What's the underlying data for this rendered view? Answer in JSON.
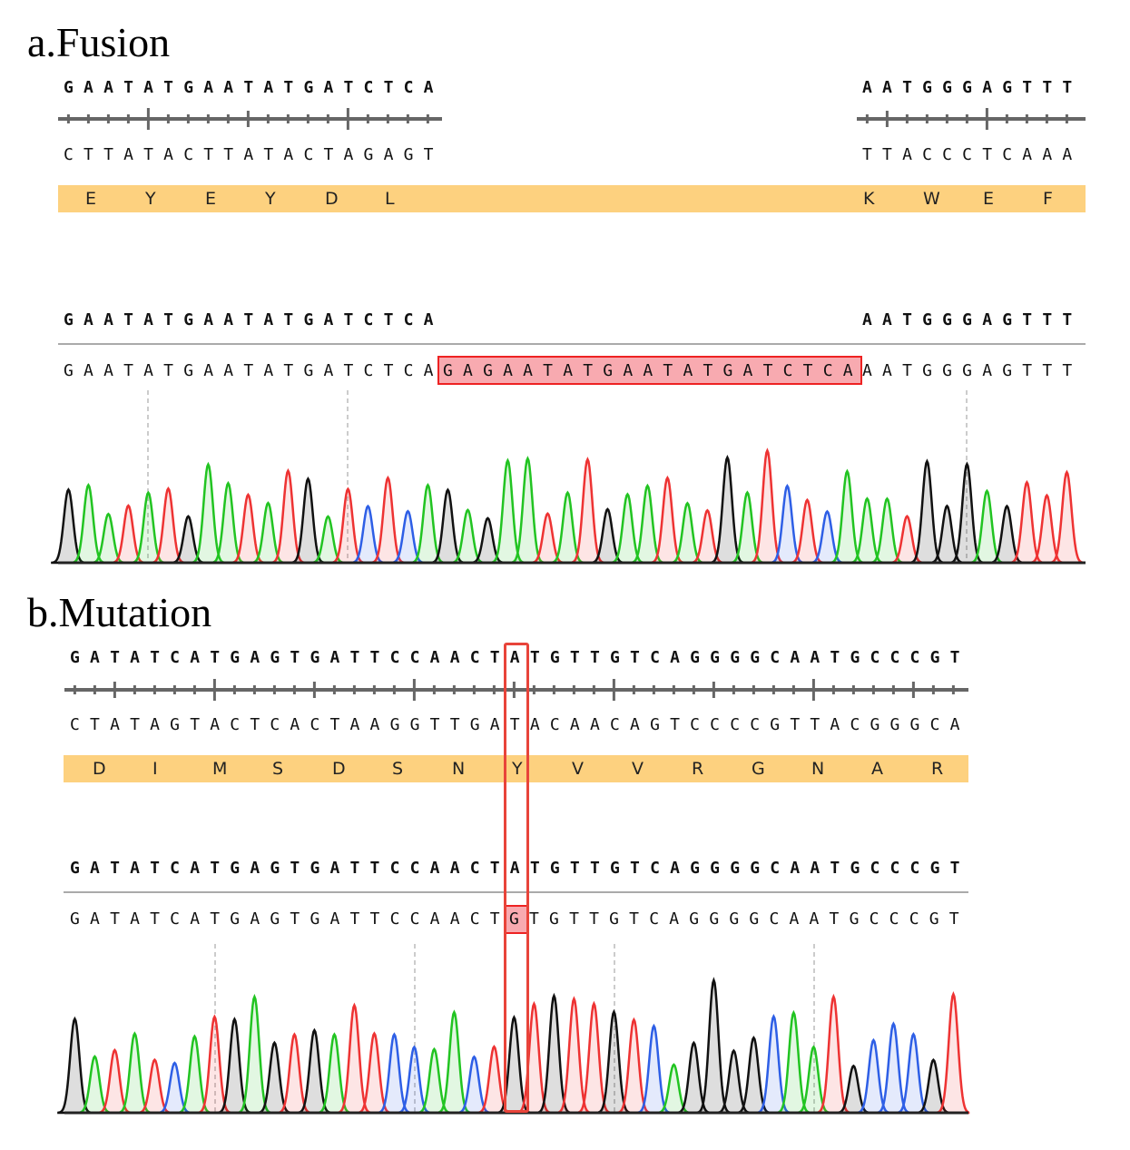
{
  "colors": {
    "A": "#22c422",
    "C": "#2e5fe6",
    "G": "#111111",
    "T": "#ee3333",
    "aa_bar": "#fdd17f",
    "highlight": "#f8aab0",
    "highlight_border": "#e22222"
  },
  "fusion": {
    "title": "a.Fusion",
    "ref_left": "GAATATGAATATGATCTCA",
    "ref_right": "AATGGGAGTTT",
    "comp_left": "CTTATACTTATACTAGAGT",
    "comp_right": "TTACCCTCAAA",
    "aa_left": [
      "E",
      "Y",
      "E",
      "Y",
      "D",
      "L"
    ],
    "aa_right": [
      "K",
      "W",
      "E",
      "F"
    ],
    "read_ref_left": "GAATATGAATATGATCTCA",
    "read_ref_right": "AATGGGAGTTT",
    "read_left": "GAATATGAATATGATCTCA",
    "read_insert": "GAGAATATGAATATGATCTCA",
    "read_right": "AATGGGAGTTT"
  },
  "mutation": {
    "title": "b.Mutation",
    "ref": "GATATCATGAGTGATTCCAACTATGTTGTCAGGGGCAATGCCCGT",
    "comp": "CTATAGTACTCACTAAGGTTGATACAACAGTCCCCGTTACGGGCA",
    "aa": [
      "D",
      "I",
      "M",
      "S",
      "D",
      "S",
      "N",
      "Y",
      "V",
      "V",
      "R",
      "G",
      "N",
      "A",
      "R"
    ],
    "read_ref": "GATATCATGAGTGATTCCAACTATGTTGTCAGGGGCAATGCCCGT",
    "read_before": "GATATCATGAGTGATTCCAACT",
    "read_mut": "G",
    "read_after": "TGTTGTCAGGGGCAATGCCCGT"
  }
}
